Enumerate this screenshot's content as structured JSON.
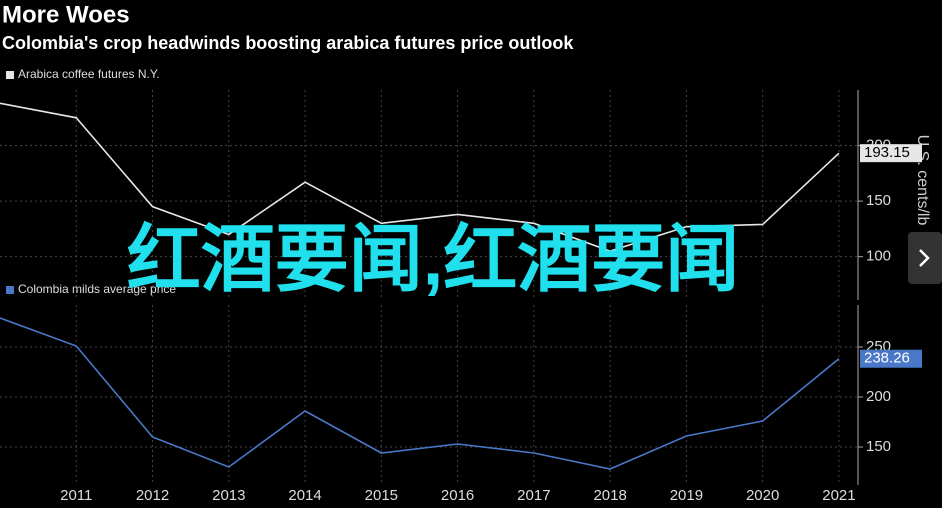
{
  "title": "More Woes",
  "subtitle": "Colombia's crop headwinds boosting arabica futures price outlook",
  "axis_label": "U.S. cents/lb",
  "overlay_text": "红酒要闻,红酒要闻",
  "chart_data": [
    {
      "type": "line",
      "x": [
        2010,
        2011,
        2012,
        2013,
        2014,
        2015,
        2016,
        2017,
        2018,
        2019,
        2020,
        2021
      ],
      "xlim": [
        2010,
        2021.25
      ],
      "xticks": [
        2011,
        2012,
        2013,
        2014,
        2015,
        2016,
        2017,
        2018,
        2019,
        2020,
        2021
      ],
      "series": [
        {
          "name": "Arabica coffee futures N.Y.",
          "color": "#e6e6e6",
          "values": [
            238,
            225,
            145,
            120,
            167,
            130,
            138,
            130,
            105,
            127,
            129,
            193.15
          ]
        }
      ],
      "last_label": "193.15",
      "ylim": [
        61,
        250
      ],
      "yticks": [
        100,
        150,
        200
      ],
      "grid": true
    },
    {
      "type": "line",
      "x": [
        2010,
        2011,
        2012,
        2013,
        2014,
        2015,
        2016,
        2017,
        2018,
        2019,
        2020,
        2021
      ],
      "xlim": [
        2010,
        2021.25
      ],
      "xticks": [
        2011,
        2012,
        2013,
        2014,
        2015,
        2016,
        2017,
        2018,
        2019,
        2020,
        2021
      ],
      "series": [
        {
          "name": "Colombia milds average price",
          "color": "#4a78c8",
          "values": [
            279,
            251,
            160,
            130,
            186,
            144,
            153,
            144,
            128,
            161,
            176,
            238.26
          ]
        }
      ],
      "last_label": "238.26",
      "ylim": [
        112,
        292
      ],
      "yticks": [
        150,
        200,
        250
      ],
      "grid": true
    }
  ]
}
